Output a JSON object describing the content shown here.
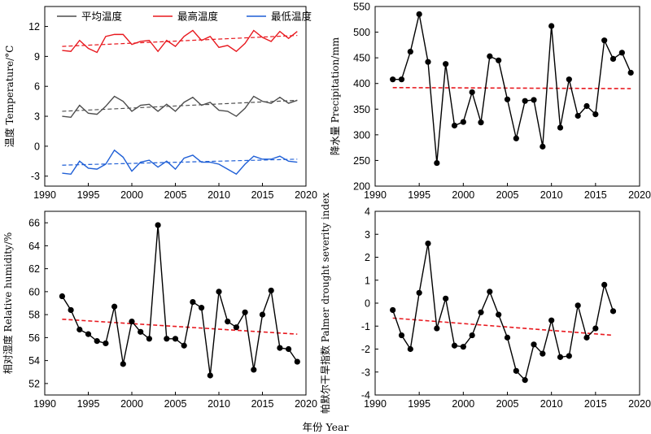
{
  "shared_xlabel": "年份 Year",
  "chart_data": [
    {
      "type": "line",
      "panel": "temperature",
      "ylabel": "温度 Temperature/°C",
      "xlim": [
        1990,
        2020
      ],
      "ylim": [
        -4,
        14
      ],
      "xticks": [
        1990,
        1995,
        2000,
        2005,
        2010,
        2015,
        2020
      ],
      "yticks": [
        -3,
        0,
        3,
        6,
        9,
        12
      ],
      "legend_position": "top",
      "x": [
        1992,
        1993,
        1994,
        1995,
        1996,
        1997,
        1998,
        1999,
        2000,
        2001,
        2002,
        2003,
        2004,
        2005,
        2006,
        2007,
        2008,
        2009,
        2010,
        2011,
        2012,
        2013,
        2014,
        2015,
        2016,
        2017,
        2018,
        2019
      ],
      "series": [
        {
          "name": "平均温度",
          "color": "#4d4d4d",
          "values": [
            3.0,
            2.9,
            4.1,
            3.3,
            3.2,
            4.0,
            5.0,
            4.5,
            3.5,
            4.1,
            4.2,
            3.5,
            4.2,
            3.5,
            4.4,
            4.9,
            4.1,
            4.4,
            3.6,
            3.5,
            3.0,
            3.8,
            5.0,
            4.5,
            4.3,
            4.9,
            4.3,
            4.6
          ],
          "trend": [
            3.5,
            4.6
          ]
        },
        {
          "name": "最高温度",
          "color": "#e8191f",
          "values": [
            9.6,
            9.5,
            10.6,
            9.8,
            9.4,
            11.0,
            11.2,
            11.2,
            10.2,
            10.5,
            10.6,
            9.5,
            10.6,
            10.0,
            11.0,
            11.6,
            10.6,
            11.0,
            9.9,
            10.1,
            9.5,
            10.3,
            11.6,
            10.9,
            10.5,
            11.5,
            10.8,
            11.5
          ],
          "trend": [
            10.0,
            11.1
          ]
        },
        {
          "name": "最低温度",
          "color": "#1f5fd6",
          "values": [
            -2.7,
            -2.8,
            -1.5,
            -2.2,
            -2.3,
            -1.8,
            -0.4,
            -1.1,
            -2.5,
            -1.6,
            -1.4,
            -2.1,
            -1.5,
            -2.3,
            -1.2,
            -0.9,
            -1.6,
            -1.6,
            -1.8,
            -2.3,
            -2.8,
            -1.8,
            -1.0,
            -1.3,
            -1.3,
            -1.0,
            -1.5,
            -1.6
          ],
          "trend": [
            -1.9,
            -1.3
          ]
        }
      ]
    },
    {
      "type": "line",
      "panel": "precipitation",
      "ylabel": "降水量 Precipitation/mm",
      "xlim": [
        1990,
        2020
      ],
      "ylim": [
        200,
        550
      ],
      "xticks": [
        1990,
        1995,
        2000,
        2005,
        2010,
        2015,
        2020
      ],
      "yticks": [
        200,
        250,
        300,
        350,
        400,
        450,
        500,
        550
      ],
      "x": [
        1992,
        1993,
        1994,
        1995,
        1996,
        1997,
        1998,
        1999,
        2000,
        2001,
        2002,
        2003,
        2004,
        2005,
        2006,
        2007,
        2008,
        2009,
        2010,
        2011,
        2012,
        2013,
        2014,
        2015,
        2016,
        2017,
        2018,
        2019
      ],
      "series": [
        {
          "color": "#000000",
          "markers": true,
          "values": [
            408,
            408,
            462,
            535,
            442,
            245,
            438,
            318,
            325,
            383,
            324,
            453,
            445,
            369,
            293,
            366,
            368,
            277,
            512,
            314,
            408,
            337,
            356,
            340,
            484,
            448,
            460,
            421
          ],
          "trend": [
            392,
            390
          ]
        }
      ]
    },
    {
      "type": "line",
      "panel": "humidity",
      "ylabel": "相对湿度 Relative humidity/%",
      "xlim": [
        1990,
        2020
      ],
      "ylim": [
        51,
        67
      ],
      "xticks": [
        1990,
        1995,
        2000,
        2005,
        2010,
        2015,
        2020
      ],
      "yticks": [
        52,
        54,
        56,
        58,
        60,
        62,
        64,
        66
      ],
      "x": [
        1992,
        1993,
        1994,
        1995,
        1996,
        1997,
        1998,
        1999,
        2000,
        2001,
        2002,
        2003,
        2004,
        2005,
        2006,
        2007,
        2008,
        2009,
        2010,
        2011,
        2012,
        2013,
        2014,
        2015,
        2016,
        2017,
        2018,
        2019
      ],
      "series": [
        {
          "color": "#000000",
          "markers": true,
          "values": [
            59.6,
            58.4,
            56.7,
            56.3,
            55.7,
            55.5,
            58.7,
            53.7,
            57.4,
            56.5,
            55.9,
            65.8,
            55.9,
            55.9,
            55.3,
            59.1,
            58.6,
            52.7,
            60.0,
            57.4,
            56.9,
            58.2,
            53.2,
            58.0,
            60.1,
            55.1,
            55.0,
            53.9
          ],
          "trend": [
            57.6,
            56.3
          ]
        }
      ]
    },
    {
      "type": "line",
      "panel": "pdsi",
      "ylabel": "帕默尔干旱指数 Palmer drought severity index",
      "xlim": [
        1990,
        2020
      ],
      "ylim": [
        -4,
        4
      ],
      "xticks": [
        1990,
        1995,
        2000,
        2005,
        2010,
        2015,
        2020
      ],
      "yticks": [
        -4,
        -3,
        -2,
        -1,
        0,
        1,
        2,
        3,
        4
      ],
      "x": [
        1992,
        1993,
        1994,
        1995,
        1996,
        1997,
        1998,
        1999,
        2000,
        2001,
        2002,
        2003,
        2004,
        2005,
        2006,
        2007,
        2008,
        2009,
        2010,
        2011,
        2012,
        2013,
        2014,
        2015,
        2016,
        2017
      ],
      "series": [
        {
          "color": "#000000",
          "markers": true,
          "values": [
            -0.3,
            -1.4,
            -2.0,
            0.45,
            2.6,
            -1.1,
            0.2,
            -1.85,
            -1.9,
            -1.4,
            -0.4,
            0.5,
            -0.5,
            -1.5,
            -2.95,
            -3.35,
            -1.8,
            -2.2,
            -0.75,
            -2.35,
            -2.3,
            -0.1,
            -1.5,
            -1.1,
            0.8,
            -0.35
          ],
          "trend": [
            -0.65,
            -1.4
          ]
        }
      ]
    }
  ]
}
